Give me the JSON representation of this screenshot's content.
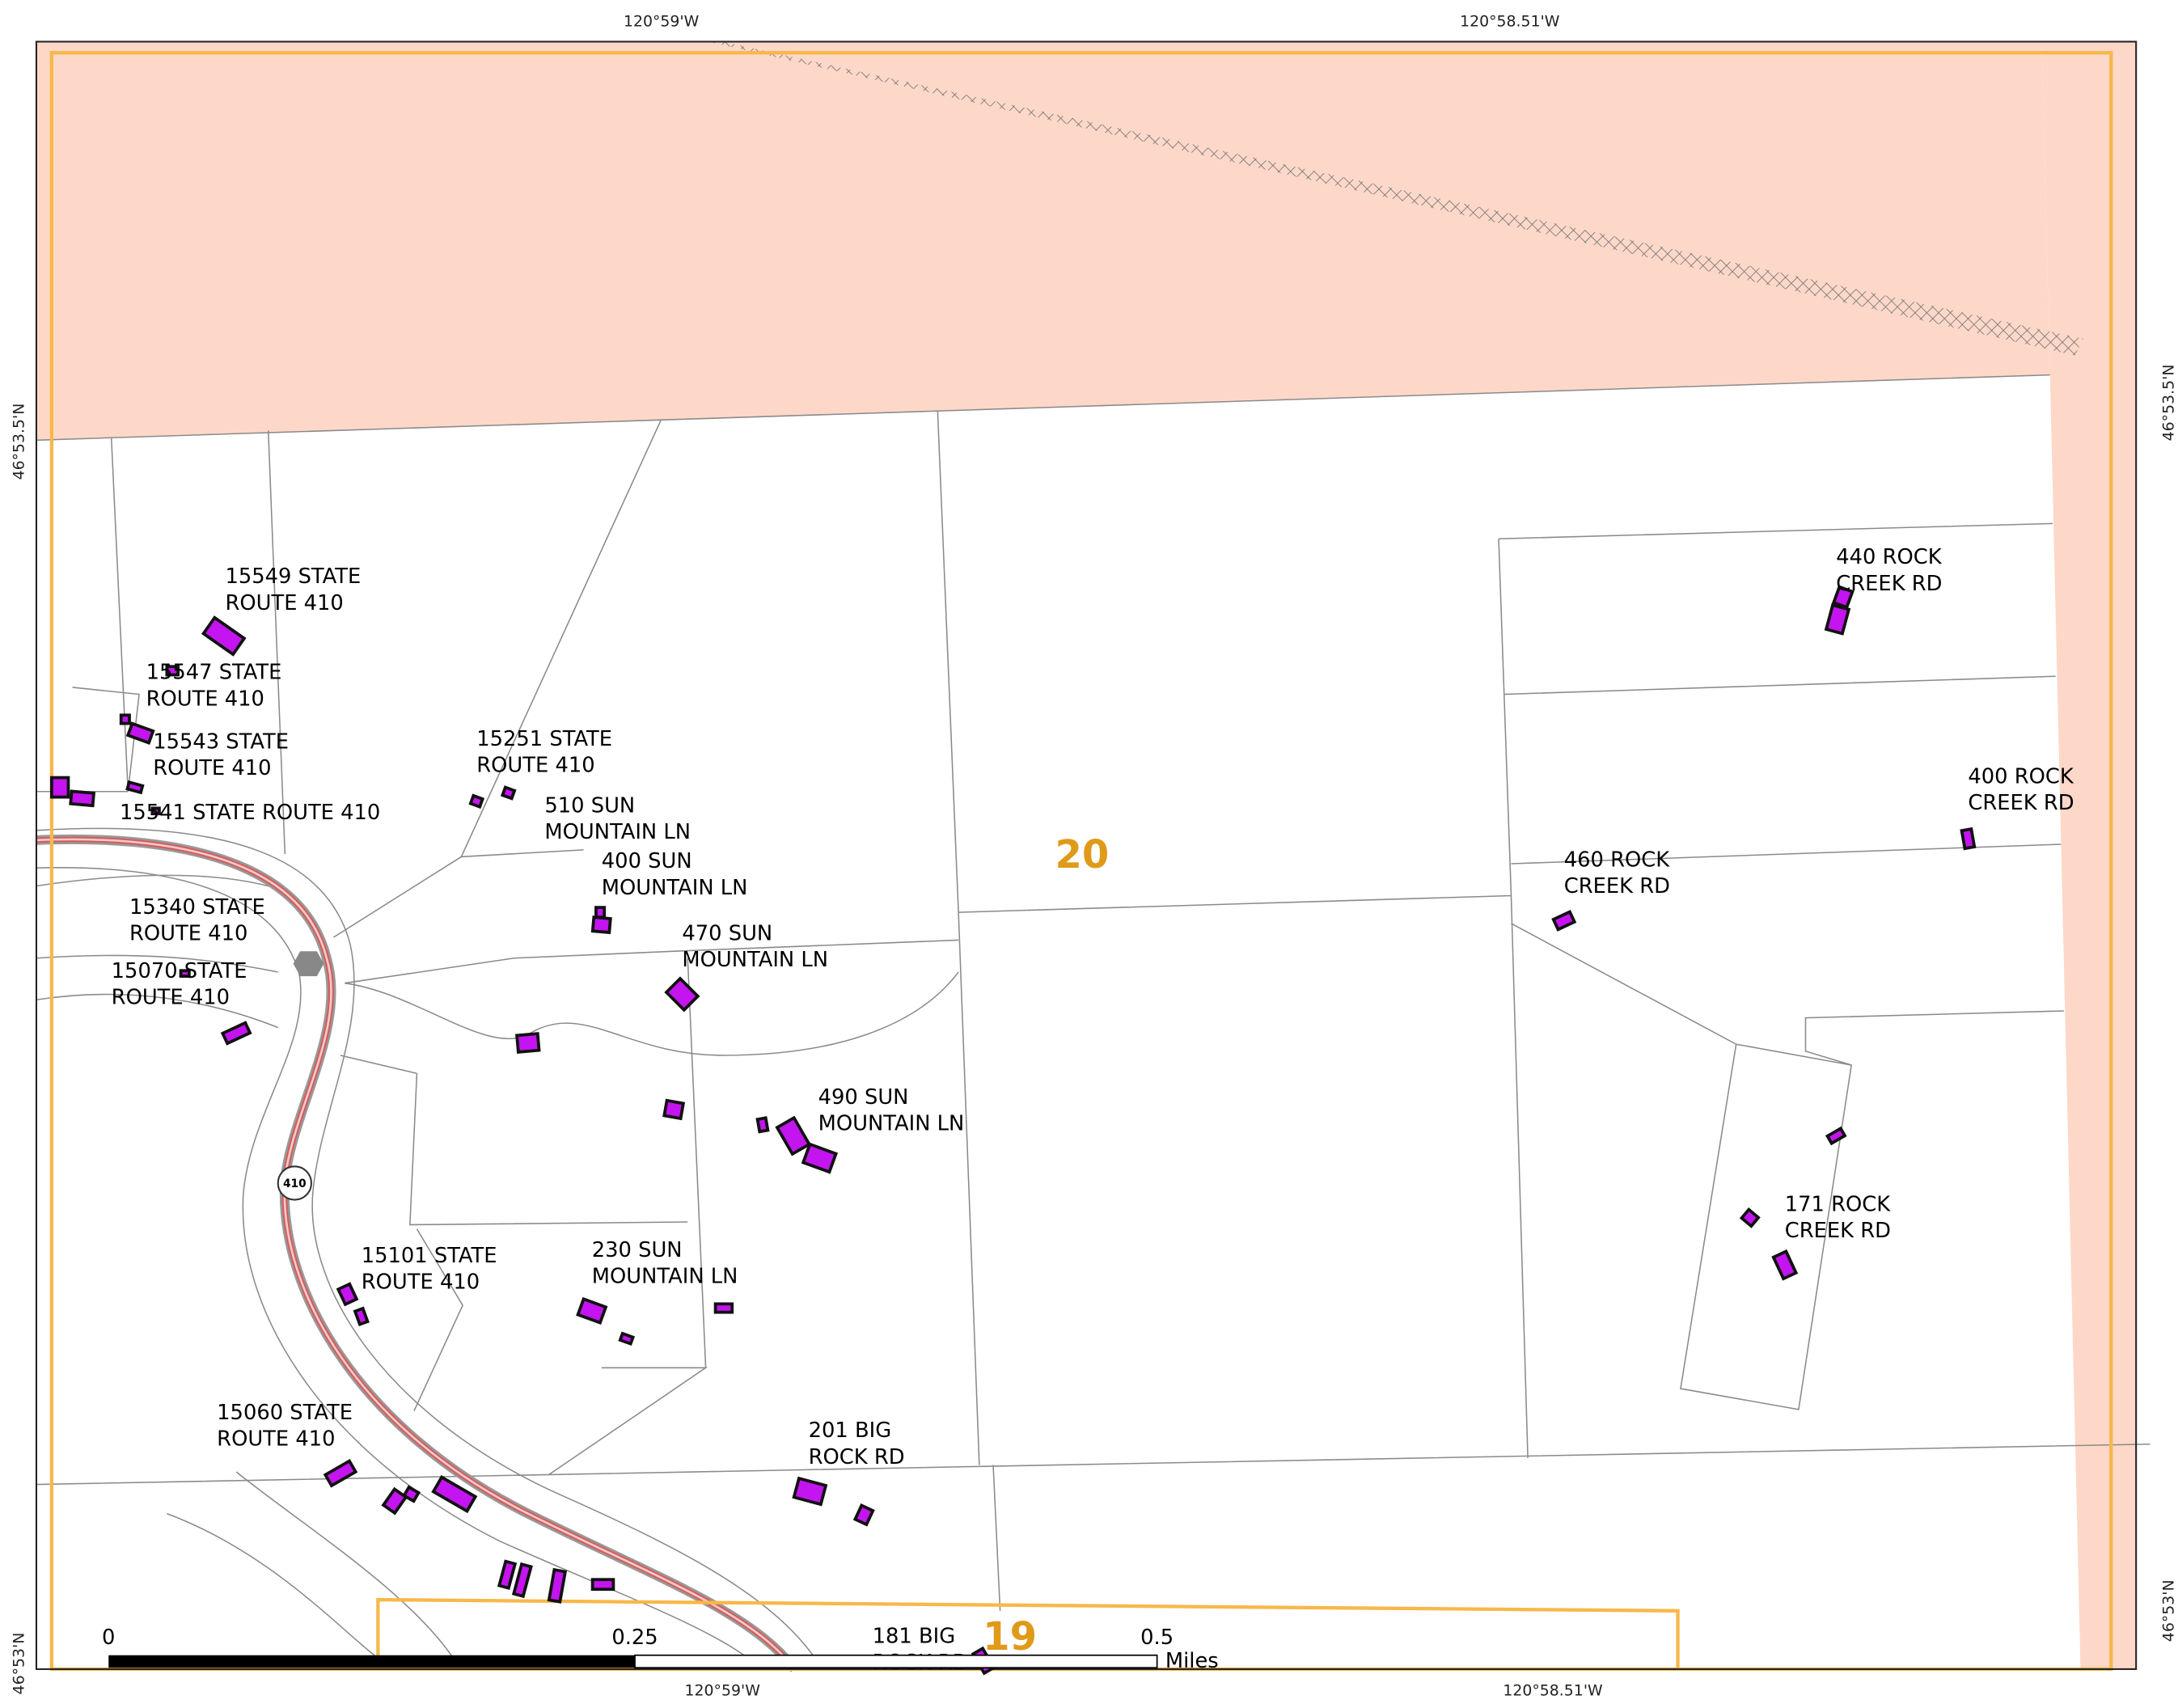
{
  "map": {
    "coordinates": {
      "top": [
        "120°59'W",
        "120°58.51'W"
      ],
      "bottom": [
        "120°59'W",
        "120°58.51'W"
      ],
      "left": [
        "46°53.5'N",
        "46°53'N"
      ],
      "right": [
        "46°53.5'N",
        "46°53'N"
      ]
    },
    "addresses": [
      [
        "15549 STATE",
        "ROUTE 410"
      ],
      [
        "15547 STATE",
        "ROUTE 410"
      ],
      [
        "15543 STATE",
        "ROUTE 410"
      ],
      [
        "15541 STATE ROUTE 410"
      ],
      [
        "15251 STATE",
        "ROUTE 410"
      ],
      [
        "510 SUN",
        "MOUNTAIN LN"
      ],
      [
        "400 SUN",
        "MOUNTAIN LN"
      ],
      [
        "470 SUN",
        "MOUNTAIN LN"
      ],
      [
        "15340 STATE",
        "ROUTE 410"
      ],
      [
        "15070 STATE",
        "ROUTE 410"
      ],
      [
        "490 SUN",
        "MOUNTAIN LN"
      ],
      [
        "15101 STATE",
        "ROUTE 410"
      ],
      [
        "230 SUN",
        "MOUNTAIN LN"
      ],
      [
        "15060 STATE",
        "ROUTE 410"
      ],
      [
        "201 BIG",
        "ROCK RD"
      ],
      [
        "181 BIG",
        "ROCK RD"
      ],
      [
        "440 ROCK",
        "CREEK RD"
      ],
      [
        "400 ROCK",
        "CREEK RD"
      ],
      [
        "460 ROCK",
        "CREEK RD"
      ],
      [
        "171 ROCK",
        "CREEK RD"
      ]
    ],
    "sections": [
      "20",
      "19"
    ],
    "route_shield": "410",
    "scale_bar": {
      "ticks": [
        "0",
        "0.25",
        "0.5"
      ],
      "unit": "Miles"
    }
  }
}
